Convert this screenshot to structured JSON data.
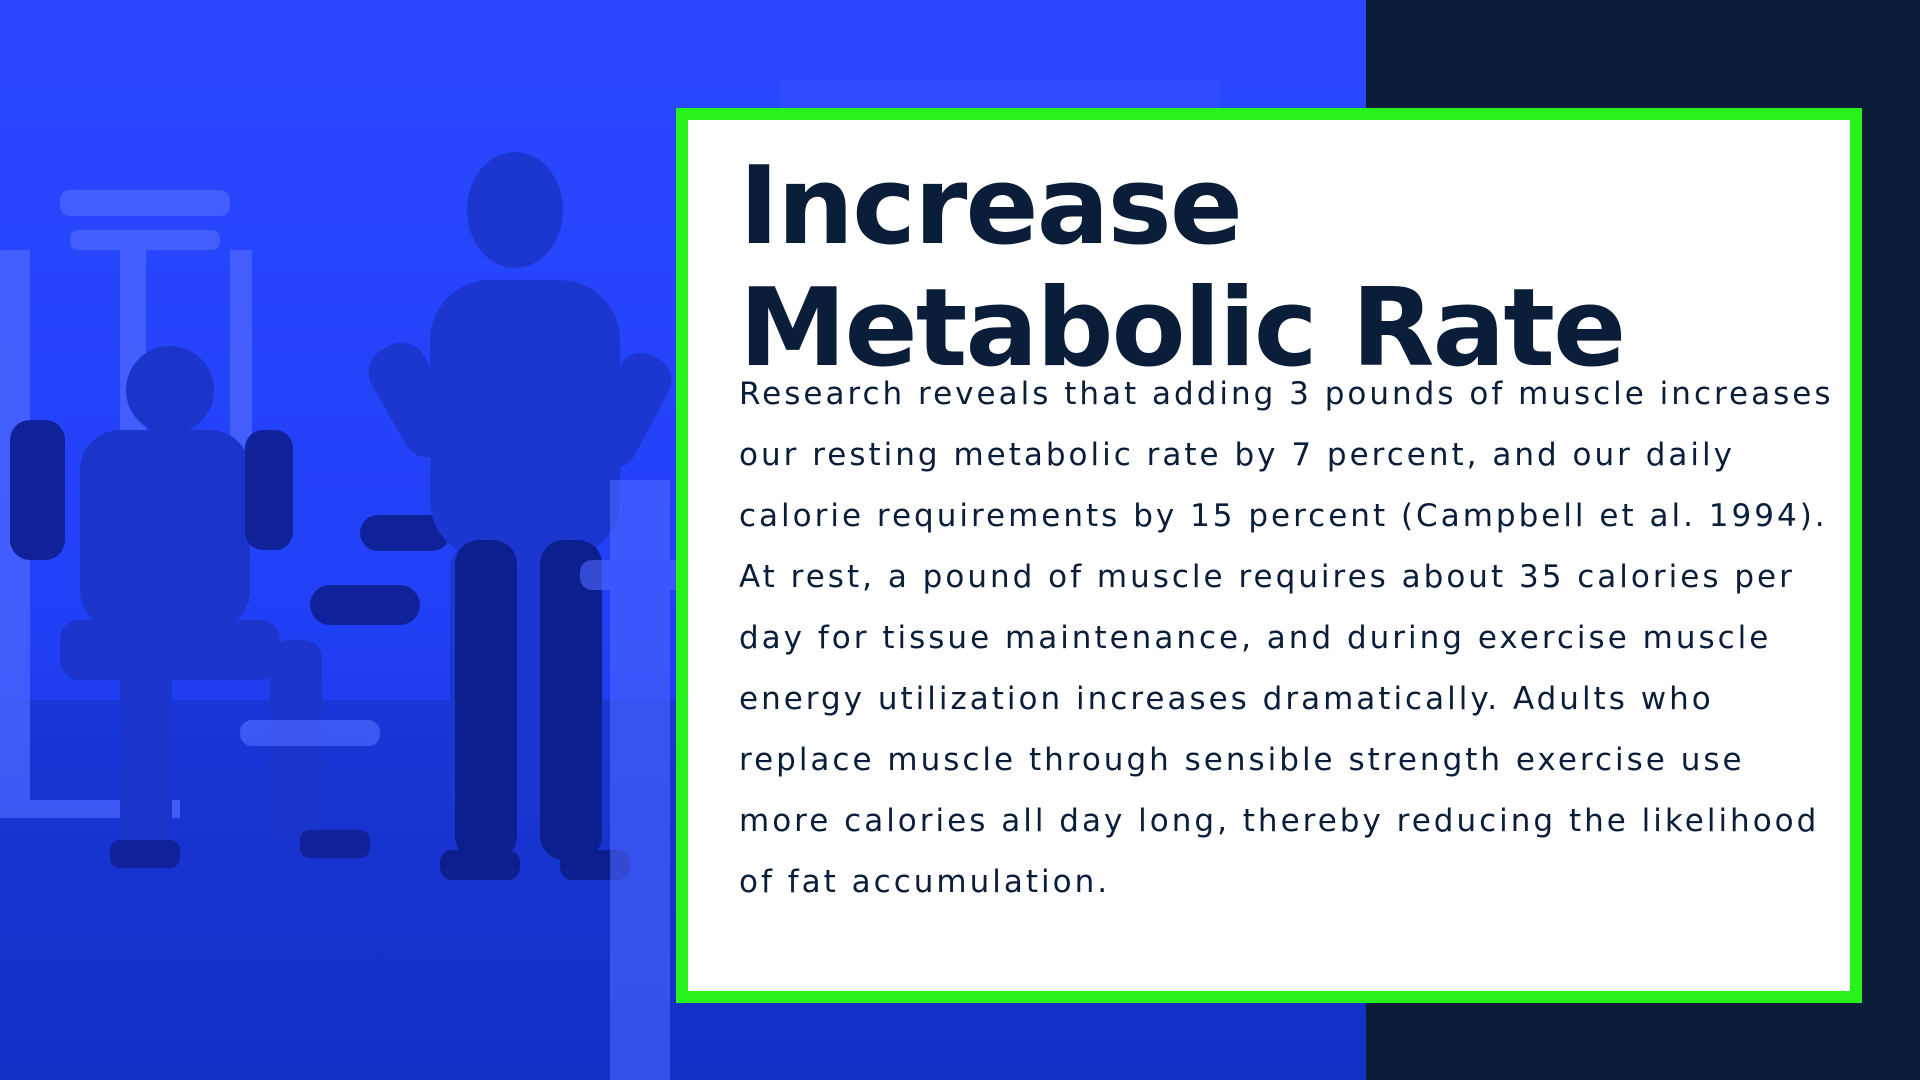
{
  "slide": {
    "title_line1": "Increase",
    "title_line2": "Metabolic Rate",
    "paragraph": "Research reveals that adding 3 pounds of muscle increases our resting metabolic rate by 7 percent, and our daily calorie requirements by 15 percent (Campbell et al. 1994). At rest, a pound of muscle requires about 35 calories per day for tissue maintenance, and during exercise muscle energy utilization increases dramatically. Adults who replace muscle through sensible strength exercise use more calories all day long, thereby reducing the likelihood of fat accumulation."
  },
  "colors": {
    "photo_tint": "#2443ff",
    "navy": "#0a1e3a",
    "card_border": "#27f21b",
    "card_background": "#ffffff"
  },
  "photo": {
    "description_icon": "gym-trainer-photo"
  }
}
